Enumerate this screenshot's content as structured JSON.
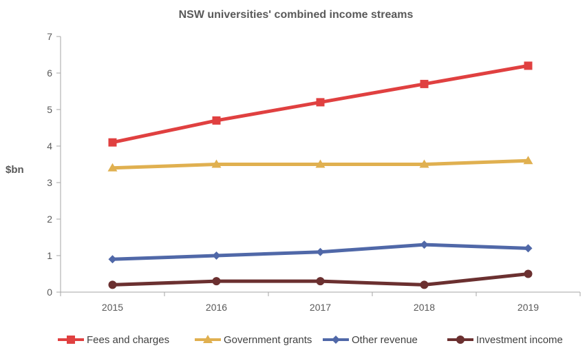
{
  "chart_data": {
    "type": "line",
    "title": "NSW universities' combined income streams",
    "xlabel": "",
    "ylabel": "$bn",
    "categories": [
      "2015",
      "2016",
      "2017",
      "2018",
      "2019"
    ],
    "ylim": [
      0,
      7
    ],
    "yticks": [
      "0",
      "1",
      "2",
      "3",
      "4",
      "5",
      "6",
      "7"
    ],
    "grid": false,
    "legend_position": "bottom",
    "series": [
      {
        "name": "Fees and charges",
        "values": [
          4.1,
          4.7,
          5.2,
          5.7,
          6.2
        ],
        "color": "#e04040",
        "marker": "square"
      },
      {
        "name": "Government grants",
        "values": [
          3.4,
          3.5,
          3.5,
          3.5,
          3.6
        ],
        "color": "#e0b050",
        "marker": "triangle"
      },
      {
        "name": "Other revenue",
        "values": [
          0.9,
          1.0,
          1.1,
          1.3,
          1.2
        ],
        "color": "#5068a8",
        "marker": "diamond"
      },
      {
        "name": "Investment income",
        "values": [
          0.2,
          0.3,
          0.3,
          0.2,
          0.5
        ],
        "color": "#6b3030",
        "marker": "circle"
      }
    ]
  }
}
